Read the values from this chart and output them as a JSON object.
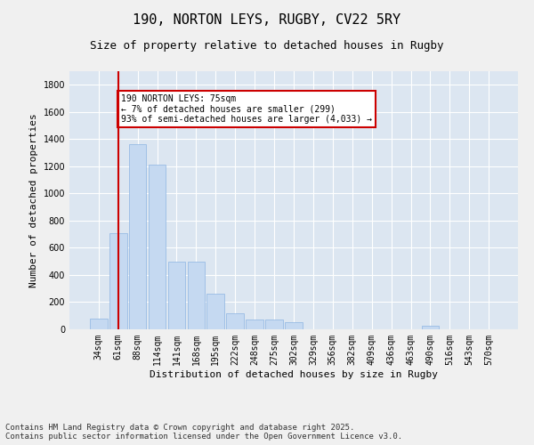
{
  "title_line1": "190, NORTON LEYS, RUGBY, CV22 5RY",
  "title_line2": "Size of property relative to detached houses in Rugby",
  "xlabel": "Distribution of detached houses by size in Rugby",
  "ylabel": "Number of detached properties",
  "bar_color": "#c5d9f1",
  "bar_edge_color": "#8db4e2",
  "background_color": "#dce6f1",
  "grid_color": "#ffffff",
  "vline_color": "#cc0000",
  "vline_x": 1,
  "annotation_text": "190 NORTON LEYS: 75sqm\n← 7% of detached houses are smaller (299)\n93% of semi-detached houses are larger (4,033) →",
  "annotation_box_color": "#ffffff",
  "annotation_box_edge_color": "#cc0000",
  "categories": [
    "34sqm",
    "61sqm",
    "88sqm",
    "114sqm",
    "141sqm",
    "168sqm",
    "195sqm",
    "222sqm",
    "248sqm",
    "275sqm",
    "302sqm",
    "329sqm",
    "356sqm",
    "382sqm",
    "409sqm",
    "436sqm",
    "463sqm",
    "490sqm",
    "516sqm",
    "543sqm",
    "570sqm"
  ],
  "values": [
    80,
    710,
    1360,
    1210,
    500,
    500,
    260,
    120,
    75,
    75,
    55,
    0,
    0,
    0,
    0,
    0,
    0,
    25,
    0,
    0,
    0
  ],
  "ylim": [
    0,
    1900
  ],
  "yticks": [
    0,
    200,
    400,
    600,
    800,
    1000,
    1200,
    1400,
    1600,
    1800
  ],
  "footnote": "Contains HM Land Registry data © Crown copyright and database right 2025.\nContains public sector information licensed under the Open Government Licence v3.0.",
  "title_fontsize": 11,
  "subtitle_fontsize": 9,
  "axis_label_fontsize": 8,
  "tick_fontsize": 7,
  "footnote_fontsize": 6.5
}
